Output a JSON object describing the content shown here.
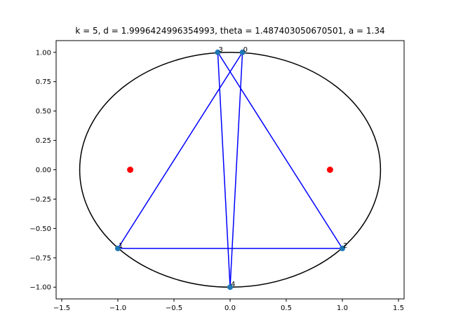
{
  "chart_data": {
    "type": "scatter",
    "title": "k = 5, d = 1.9996424996354993, theta = 1.487403050670501, a = 1.34",
    "xlabel": "",
    "ylabel": "",
    "xlim": [
      -1.55,
      1.55
    ],
    "ylim": [
      -1.1,
      1.1
    ],
    "x_ticks": [
      -1.5,
      -1.0,
      -0.5,
      0.0,
      0.5,
      1.0,
      1.5
    ],
    "x_tick_labels": [
      "−1.5",
      "−1.0",
      "−0.5",
      "0.0",
      "0.5",
      "1.0",
      "1.5"
    ],
    "y_ticks": [
      1.0,
      0.75,
      0.5,
      0.25,
      0.0,
      -0.25,
      -0.5,
      -0.75,
      -1.0
    ],
    "y_tick_labels": [
      "1.00",
      "0.75",
      "0.50",
      "0.25",
      "0.00",
      "−0.25",
      "−0.50",
      "−0.75",
      "−1.00"
    ],
    "grid": false,
    "ellipse": {
      "a": 1.34,
      "b": 1.0,
      "color": "#000000"
    },
    "foci": [
      {
        "x": -0.89,
        "y": 0.0
      },
      {
        "x": 0.89,
        "y": 0.0
      }
    ],
    "focus_color": "#ff0000",
    "points": [
      {
        "label": "0",
        "x": 0.11,
        "y": 1.0
      },
      {
        "label": "1",
        "x": -1.0,
        "y": -0.67
      },
      {
        "label": "2",
        "x": 1.0,
        "y": -0.67
      },
      {
        "label": "3",
        "x": -0.11,
        "y": 1.0
      },
      {
        "label": "4",
        "x": 0.0,
        "y": -1.0
      }
    ],
    "point_color": "#1f77b4",
    "path_color": "#0000ff",
    "path_order": [
      0,
      1,
      2,
      3,
      4,
      0
    ]
  }
}
